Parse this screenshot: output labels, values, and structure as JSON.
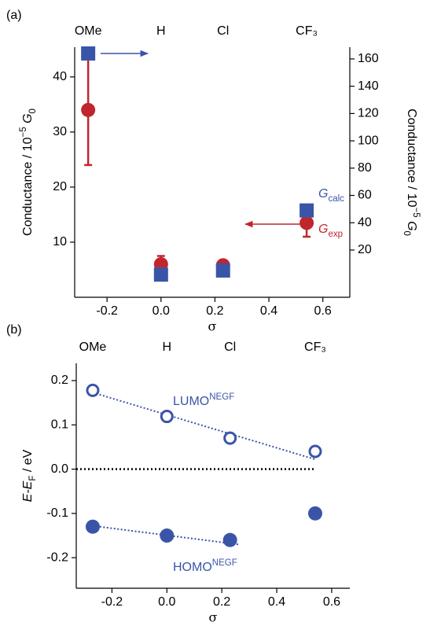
{
  "chart_data": [
    {
      "type": "scatter",
      "panel": "(a)",
      "categories": [
        "OMe",
        "H",
        "Cl",
        "CF₃"
      ],
      "x": [
        -0.27,
        0,
        0.23,
        0.54
      ],
      "xlabel": "σ",
      "ylabel": [
        {
          "text": "Conductance / 10"
        },
        {
          "text": "−5",
          "sup": true
        },
        {
          "text": " "
        },
        {
          "text": "G",
          "italic": true
        },
        {
          "text": "0",
          "sub": true
        }
      ],
      "y2label": [
        {
          "text": "Conductance / 10"
        },
        {
          "text": "−5",
          "sup": true
        },
        {
          "text": " "
        },
        {
          "text": "G",
          "italic": true
        },
        {
          "text": "0",
          "sub": true
        }
      ],
      "xlim": [
        -0.32,
        0.7
      ],
      "xticks": [
        -0.2,
        {
          "value": 0,
          "label": "0.0"
        },
        0.2,
        0.4,
        0.6
      ],
      "ylim": [
        0,
        45.4
      ],
      "yticks": [
        10,
        20,
        30,
        40
      ],
      "y2lim": [
        -14.6,
        168.6
      ],
      "y2ticks": [
        20,
        40,
        60,
        80,
        100,
        120,
        140,
        160
      ],
      "series": [
        {
          "name": "G",
          "name_sub": "exp",
          "marker": "circle",
          "color": "#c0262d",
          "values": [
            34,
            6,
            5.8,
            13.5
          ],
          "errors": [
            10,
            1.5,
            0.8,
            2.5
          ]
        },
        {
          "name": "G",
          "name_sub": "calc",
          "marker": "square",
          "color": "#3a55a8",
          "axis": "y2",
          "values": [
            164,
            2,
            5,
            49
          ]
        }
      ]
    },
    {
      "type": "scatter",
      "panel": "(b)",
      "categories": [
        "OMe",
        "H",
        "Cl",
        "CF₃"
      ],
      "x": [
        -0.27,
        0,
        0.23,
        0.54
      ],
      "xlabel": "σ",
      "ylabel": [
        {
          "text": "E-E",
          "italic": true
        },
        {
          "text": "F",
          "sub": true
        },
        {
          "text": " / eV"
        }
      ],
      "xlim": [
        -0.33,
        0.666
      ],
      "xticks": [
        -0.2,
        {
          "value": 0,
          "label": "0.0"
        },
        0.2,
        0.4,
        0.6
      ],
      "ylim": [
        -0.269,
        0.239
      ],
      "yticks": [
        0.2,
        0.1,
        {
          "value": 0,
          "label": "0.0"
        },
        -0.1,
        -0.2
      ],
      "zero_line": true,
      "series": [
        {
          "name": "LUMO",
          "name_sup": "NEGF",
          "marker": "open-circle",
          "color": "#3a55a8",
          "values": [
            0.178,
            0.119,
            0.07,
            0.04
          ],
          "fit": {
            "x": [
              -0.27,
              0.54
            ],
            "values": [
              0.173,
              0.022
            ]
          }
        },
        {
          "name": "HOMO",
          "name_sup": "NEGF",
          "marker": "circle",
          "color": "#3a55a8",
          "values": [
            -0.13,
            -0.15,
            -0.16,
            -0.1
          ],
          "fit": {
            "x": [
              -0.27,
              0.26
            ],
            "values": [
              -0.128,
              -0.17
            ]
          }
        }
      ]
    }
  ]
}
